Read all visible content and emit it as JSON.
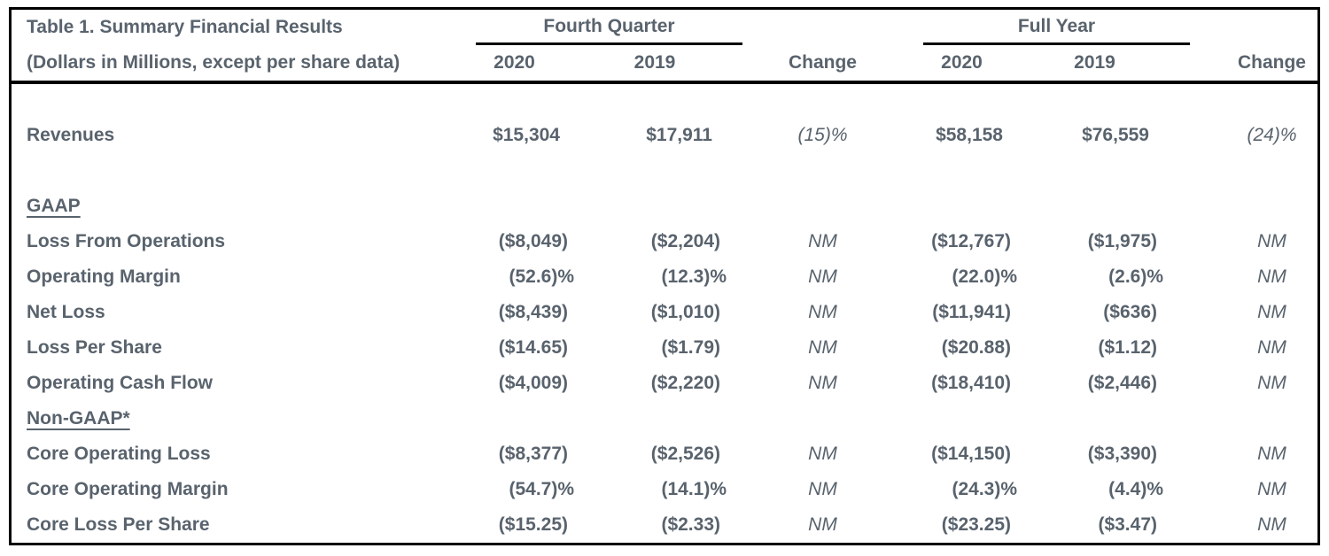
{
  "table": {
    "title": "Table 1. Summary Financial Results",
    "subtitle": "(Dollars in Millions, except per share data)",
    "col_groups": {
      "fourth_quarter": "Fourth Quarter",
      "full_year": "Full Year"
    },
    "columns": [
      "2020",
      "2019",
      "Change",
      "2020",
      "2019",
      "Change"
    ],
    "rows": [
      {
        "type": "data",
        "label": "Revenues",
        "cells": [
          "$15,304",
          "$17,911",
          "(15)%",
          "$58,158",
          "$76,559",
          "(24)%"
        ]
      },
      {
        "type": "section",
        "label": "GAAP"
      },
      {
        "type": "data",
        "label": "Loss From Operations",
        "cells": [
          "($8,049)",
          "($2,204)",
          "NM",
          "($12,767)",
          "($1,975)",
          "NM"
        ]
      },
      {
        "type": "data",
        "label": "Operating Margin",
        "cells": [
          "(52.6)%",
          "(12.3)%",
          "NM",
          "(22.0)%",
          "(2.6)%",
          "NM"
        ]
      },
      {
        "type": "data",
        "label": "Net Loss",
        "cells": [
          "($8,439)",
          "($1,010)",
          "NM",
          "($11,941)",
          "($636)",
          "NM"
        ]
      },
      {
        "type": "data",
        "label": "Loss Per Share",
        "cells": [
          "($14.65)",
          "($1.79)",
          "NM",
          "($20.88)",
          "($1.12)",
          "NM"
        ]
      },
      {
        "type": "data",
        "label": "Operating Cash Flow",
        "cells": [
          "($4,009)",
          "($2,220)",
          "NM",
          "($18,410)",
          "($2,446)",
          "NM"
        ]
      },
      {
        "type": "section",
        "label": "Non-GAAP*"
      },
      {
        "type": "data",
        "label": "Core Operating Loss",
        "cells": [
          "($8,377)",
          "($2,526)",
          "NM",
          "($14,150)",
          "($3,390)",
          "NM"
        ]
      },
      {
        "type": "data",
        "label": "Core Operating Margin",
        "cells": [
          "(54.7)%",
          "(14.1)%",
          "NM",
          "(24.3)%",
          "(4.4)%",
          "NM"
        ]
      },
      {
        "type": "data",
        "label": "Core Loss Per Share",
        "cells": [
          "($15.25)",
          "($2.33)",
          "NM",
          "($23.25)",
          "($3.47)",
          "NM"
        ]
      }
    ],
    "colors": {
      "text": "#59636d",
      "border": "#000000",
      "background": "#ffffff"
    }
  }
}
